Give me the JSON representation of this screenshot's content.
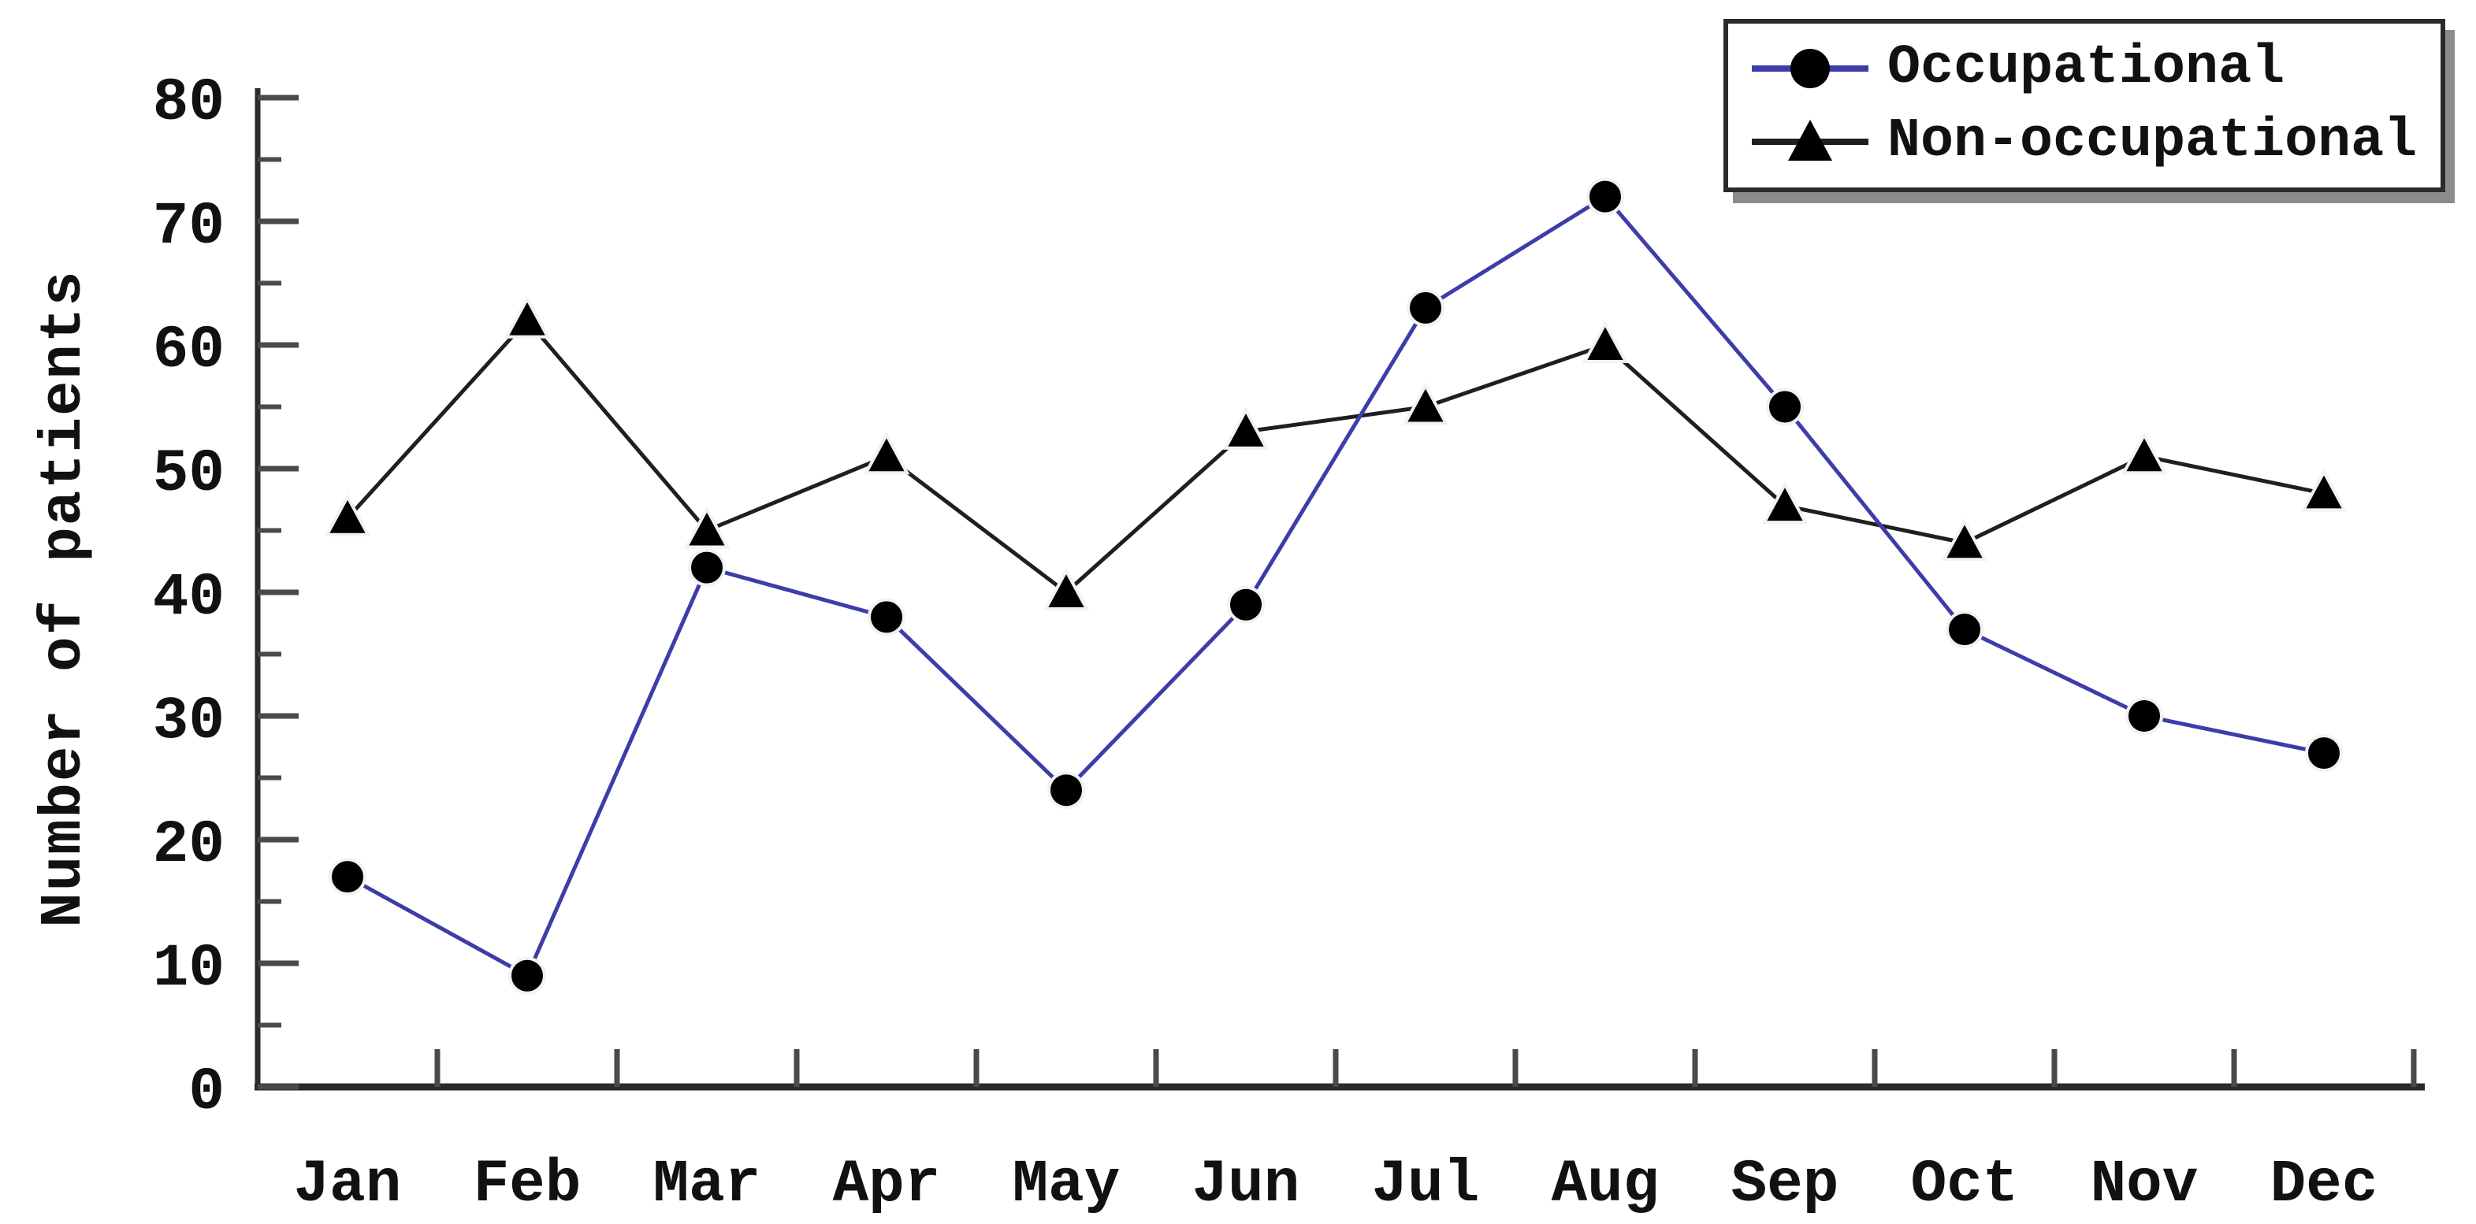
{
  "chart_data": {
    "type": "line",
    "title": "",
    "categories": [
      "Jan",
      "Feb",
      "Mar",
      "Apr",
      "May",
      "Jun",
      "Jul",
      "Aug",
      "Sep",
      "Oct",
      "Nov",
      "Dec"
    ],
    "series": [
      {
        "name": "Occupational",
        "values": [
          17,
          9,
          42,
          38,
          24,
          39,
          63,
          72,
          55,
          37,
          30,
          27
        ],
        "line_color": "#3d3daa",
        "marker": "circle",
        "marker_color": "#000000"
      },
      {
        "name": "Non-occupational",
        "values": [
          46,
          62,
          45,
          51,
          40,
          53,
          55,
          60,
          47,
          44,
          51,
          48
        ],
        "line_color": "#1f1f1f",
        "marker": "triangle",
        "marker_color": "#000000"
      }
    ],
    "xlabel": "",
    "ylabel": "Number of patients",
    "ylim": [
      0,
      80
    ],
    "yticks": [
      0,
      10,
      20,
      30,
      40,
      50,
      60,
      70,
      80
    ],
    "ytick_step": 10,
    "yminor_step": 5,
    "grid": false,
    "legend_position": "top-right"
  },
  "colors": {
    "background": "#ffffff",
    "axis": "#2b2b2b",
    "tick": "#4a4a4a",
    "text": "#111111",
    "legend_border": "#2b2b2b",
    "legend_shadow": "#8c8c8c"
  }
}
